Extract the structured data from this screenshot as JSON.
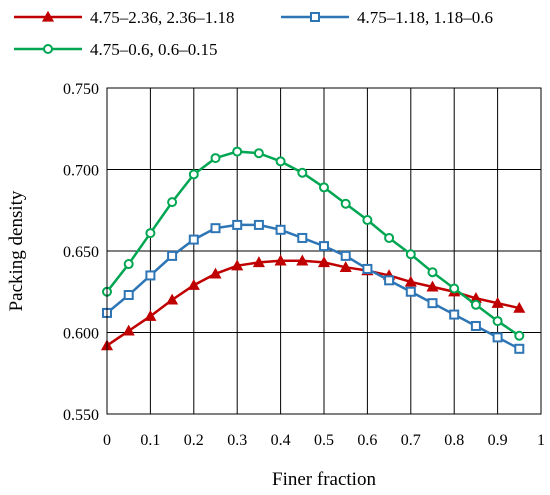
{
  "chart_data": {
    "type": "line",
    "title": "",
    "xlabel": "Finer fraction",
    "ylabel": "Packing density",
    "xlim": [
      0,
      1
    ],
    "ylim": [
      0.55,
      0.75
    ],
    "xticks": [
      0,
      0.1,
      0.2,
      0.3,
      0.4,
      0.5,
      0.6,
      0.7,
      0.8,
      0.9,
      1
    ],
    "xtick_labels": [
      "0",
      "0.1",
      "0.2",
      "0.3",
      "0.4",
      "0.5",
      "0.6",
      "0.7",
      "0.8",
      "0.9",
      "1"
    ],
    "yticks": [
      0.55,
      0.6,
      0.65,
      0.7,
      0.75
    ],
    "ytick_labels": [
      "0.550",
      "0.600",
      "0.650",
      "0.700",
      "0.750"
    ],
    "grid": true,
    "legend_position": "top",
    "x": [
      0,
      0.05,
      0.1,
      0.15,
      0.2,
      0.25,
      0.3,
      0.35,
      0.4,
      0.45,
      0.5,
      0.55,
      0.6,
      0.65,
      0.7,
      0.75,
      0.8,
      0.85,
      0.9,
      0.95
    ],
    "series": [
      {
        "name": "4.75–2.36, 2.36–1.18",
        "color": "#c00000",
        "marker": "triangle",
        "values": [
          0.592,
          0.601,
          0.61,
          0.62,
          0.629,
          0.636,
          0.641,
          0.643,
          0.644,
          0.644,
          0.643,
          0.64,
          0.638,
          0.635,
          0.631,
          0.628,
          0.625,
          0.621,
          0.618,
          0.615
        ]
      },
      {
        "name": "4.75–1.18, 1.18–0.6",
        "color": "#2e75b6",
        "marker": "square",
        "values": [
          0.612,
          0.623,
          0.635,
          0.647,
          0.657,
          0.664,
          0.666,
          0.666,
          0.663,
          0.658,
          0.653,
          0.647,
          0.639,
          0.632,
          0.625,
          0.618,
          0.611,
          0.604,
          0.597,
          0.59
        ]
      },
      {
        "name": "4.75–0.6, 0.6–0.15",
        "color": "#00a651",
        "marker": "circle",
        "values": [
          0.625,
          0.642,
          0.661,
          0.68,
          0.697,
          0.707,
          0.711,
          0.71,
          0.705,
          0.698,
          0.689,
          0.679,
          0.669,
          0.658,
          0.648,
          0.637,
          0.627,
          0.617,
          0.607,
          0.598
        ]
      }
    ]
  }
}
